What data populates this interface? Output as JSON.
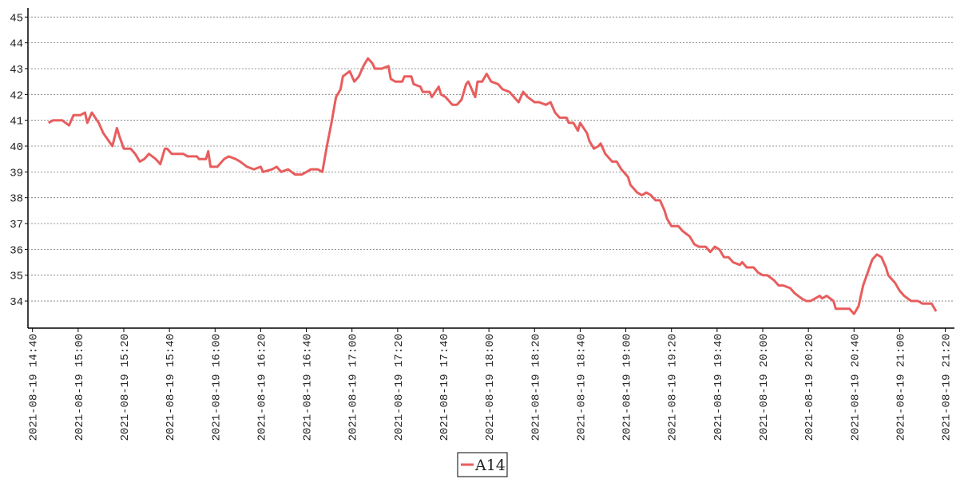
{
  "chart_data": {
    "type": "line",
    "x": [
      "2021-08-19 14:47",
      "2021-08-19 14:49",
      "2021-08-19 14:53",
      "2021-08-19 14:56",
      "2021-08-19 14:58",
      "2021-08-19 15:01",
      "2021-08-19 15:03",
      "2021-08-19 15:04",
      "2021-08-19 15:06",
      "2021-08-19 15:09",
      "2021-08-19 15:11",
      "2021-08-19 15:15",
      "2021-08-19 15:17",
      "2021-08-19 15:18",
      "2021-08-19 15:20",
      "2021-08-19 15:23",
      "2021-08-19 15:25",
      "2021-08-19 15:27",
      "2021-08-19 15:29",
      "2021-08-19 15:31",
      "2021-08-19 15:34",
      "2021-08-19 15:36",
      "2021-08-19 15:38",
      "2021-08-19 15:39",
      "2021-08-19 15:41",
      "2021-08-19 15:46",
      "2021-08-19 15:48",
      "2021-08-19 15:52",
      "2021-08-19 15:53",
      "2021-08-19 15:56",
      "2021-08-19 15:57",
      "2021-08-19 15:58",
      "2021-08-19 16:01",
      "2021-08-19 16:04",
      "2021-08-19 16:06",
      "2021-08-19 16:09",
      "2021-08-19 16:11",
      "2021-08-19 16:14",
      "2021-08-19 16:17",
      "2021-08-19 16:20",
      "2021-08-19 16:21",
      "2021-08-19 16:25",
      "2021-08-19 16:27",
      "2021-08-19 16:29",
      "2021-08-19 16:32",
      "2021-08-19 16:35",
      "2021-08-19 16:38",
      "2021-08-19 16:40",
      "2021-08-19 16:42",
      "2021-08-19 16:45",
      "2021-08-19 16:47",
      "2021-08-19 16:49",
      "2021-08-19 16:51",
      "2021-08-19 16:53",
      "2021-08-19 16:55",
      "2021-08-19 16:56",
      "2021-08-19 16:59",
      "2021-08-19 17:01",
      "2021-08-19 17:03",
      "2021-08-19 17:05",
      "2021-08-19 17:07",
      "2021-08-19 17:09",
      "2021-08-19 17:10",
      "2021-08-19 17:13",
      "2021-08-19 17:16",
      "2021-08-19 17:17",
      "2021-08-19 17:19",
      "2021-08-19 17:22",
      "2021-08-19 17:23",
      "2021-08-19 17:26",
      "2021-08-19 17:27",
      "2021-08-19 17:30",
      "2021-08-19 17:31",
      "2021-08-19 17:34",
      "2021-08-19 17:35",
      "2021-08-19 17:38",
      "2021-08-19 17:39",
      "2021-08-19 17:41",
      "2021-08-19 17:44",
      "2021-08-19 17:46",
      "2021-08-19 17:48",
      "2021-08-19 17:50",
      "2021-08-19 17:51",
      "2021-08-19 17:54",
      "2021-08-19 17:55",
      "2021-08-19 17:57",
      "2021-08-19 17:59",
      "2021-08-19 18:01",
      "2021-08-19 18:04",
      "2021-08-19 18:06",
      "2021-08-19 18:09",
      "2021-08-19 18:11",
      "2021-08-19 18:13",
      "2021-08-19 18:15",
      "2021-08-19 18:17",
      "2021-08-19 18:20",
      "2021-08-19 18:22",
      "2021-08-19 18:25",
      "2021-08-19 18:27",
      "2021-08-19 18:29",
      "2021-08-19 18:31",
      "2021-08-19 18:34",
      "2021-08-19 18:35",
      "2021-08-19 18:37",
      "2021-08-19 18:39",
      "2021-08-19 18:40",
      "2021-08-19 18:43",
      "2021-08-19 18:44",
      "2021-08-19 18:46",
      "2021-08-19 18:48",
      "2021-08-19 18:49",
      "2021-08-19 18:51",
      "2021-08-19 18:54",
      "2021-08-19 18:56",
      "2021-08-19 18:58",
      "2021-08-19 19:01",
      "2021-08-19 19:02",
      "2021-08-19 19:05",
      "2021-08-19 19:07",
      "2021-08-19 19:09",
      "2021-08-19 19:11",
      "2021-08-19 19:13",
      "2021-08-19 19:15",
      "2021-08-19 19:17",
      "2021-08-19 19:18",
      "2021-08-19 19:20",
      "2021-08-19 19:23",
      "2021-08-19 19:25",
      "2021-08-19 19:28",
      "2021-08-19 19:30",
      "2021-08-19 19:32",
      "2021-08-19 19:35",
      "2021-08-19 19:37",
      "2021-08-19 19:39",
      "2021-08-19 19:41",
      "2021-08-19 19:43",
      "2021-08-19 19:45",
      "2021-08-19 19:47",
      "2021-08-19 19:50",
      "2021-08-19 19:51",
      "2021-08-19 19:53",
      "2021-08-19 19:56",
      "2021-08-19 19:58",
      "2021-08-19 20:00",
      "2021-08-19 20:02",
      "2021-08-19 20:05",
      "2021-08-19 20:07",
      "2021-08-19 20:09",
      "2021-08-19 20:12",
      "2021-08-19 20:14",
      "2021-08-19 20:17",
      "2021-08-19 20:19",
      "2021-08-19 20:21",
      "2021-08-19 20:23",
      "2021-08-19 20:25",
      "2021-08-19 20:26",
      "2021-08-19 20:28",
      "2021-08-19 20:31",
      "2021-08-19 20:32",
      "2021-08-19 20:35",
      "2021-08-19 20:38",
      "2021-08-19 20:39",
      "2021-08-19 20:40",
      "2021-08-19 20:42",
      "2021-08-19 20:44",
      "2021-08-19 20:46",
      "2021-08-19 20:48",
      "2021-08-19 20:50",
      "2021-08-19 20:52",
      "2021-08-19 20:54",
      "2021-08-19 20:55",
      "2021-08-19 20:58",
      "2021-08-19 21:00",
      "2021-08-19 21:02",
      "2021-08-19 21:05",
      "2021-08-19 21:08",
      "2021-08-19 21:10",
      "2021-08-19 21:14",
      "2021-08-19 21:16"
    ],
    "series": [
      {
        "name": "A14",
        "color": "#e85d5d",
        "values": [
          40.9,
          41.0,
          41.0,
          40.8,
          41.2,
          41.2,
          41.3,
          40.9,
          41.3,
          40.9,
          40.5,
          40.0,
          40.7,
          40.4,
          39.9,
          39.9,
          39.7,
          39.4,
          39.5,
          39.7,
          39.5,
          39.3,
          39.9,
          39.9,
          39.7,
          39.7,
          39.6,
          39.6,
          39.5,
          39.5,
          39.8,
          39.2,
          39.2,
          39.5,
          39.6,
          39.5,
          39.4,
          39.2,
          39.1,
          39.2,
          39.0,
          39.1,
          39.2,
          39.0,
          39.1,
          38.9,
          38.9,
          39.0,
          39.1,
          39.1,
          39.0,
          40.0,
          40.9,
          41.9,
          42.2,
          42.7,
          42.9,
          42.5,
          42.7,
          43.1,
          43.4,
          43.2,
          43.0,
          43.0,
          43.1,
          42.6,
          42.5,
          42.5,
          42.7,
          42.7,
          42.4,
          42.3,
          42.1,
          42.1,
          41.9,
          42.3,
          42.0,
          41.9,
          41.6,
          41.6,
          41.8,
          42.4,
          42.5,
          41.9,
          42.5,
          42.5,
          42.8,
          42.5,
          42.4,
          42.2,
          42.1,
          41.9,
          41.7,
          42.1,
          41.9,
          41.7,
          41.7,
          41.6,
          41.7,
          41.3,
          41.1,
          41.1,
          40.9,
          40.9,
          40.6,
          40.9,
          40.5,
          40.2,
          39.9,
          40.0,
          40.1,
          39.7,
          39.4,
          39.4,
          39.1,
          38.8,
          38.5,
          38.2,
          38.1,
          38.2,
          38.1,
          37.9,
          37.9,
          37.5,
          37.2,
          36.9,
          36.9,
          36.7,
          36.5,
          36.2,
          36.1,
          36.1,
          35.9,
          36.1,
          36.0,
          35.7,
          35.7,
          35.5,
          35.4,
          35.5,
          35.3,
          35.3,
          35.1,
          35.0,
          35.0,
          34.8,
          34.6,
          34.6,
          34.5,
          34.3,
          34.1,
          34.0,
          34.0,
          34.1,
          34.2,
          34.1,
          34.2,
          34.0,
          33.7,
          33.7,
          33.7,
          33.6,
          33.5,
          33.8,
          34.6,
          35.1,
          35.6,
          35.8,
          35.7,
          35.3,
          35.0,
          34.7,
          34.4,
          34.2,
          34.0,
          34.0,
          33.9,
          33.9,
          33.6
        ]
      }
    ],
    "xlim": [
      "2021-08-19 14:38",
      "2021-08-19 21:24"
    ],
    "xticks": [
      "2021-08-19 14:40",
      "2021-08-19 15:00",
      "2021-08-19 15:20",
      "2021-08-19 15:40",
      "2021-08-19 16:00",
      "2021-08-19 16:20",
      "2021-08-19 16:40",
      "2021-08-19 17:00",
      "2021-08-19 17:20",
      "2021-08-19 17:40",
      "2021-08-19 18:00",
      "2021-08-19 18:20",
      "2021-08-19 18:40",
      "2021-08-19 19:00",
      "2021-08-19 19:20",
      "2021-08-19 19:40",
      "2021-08-19 20:00",
      "2021-08-19 20:20",
      "2021-08-19 20:40",
      "2021-08-19 21:00",
      "2021-08-19 21:20"
    ],
    "ylim": [
      32.95,
      45.35
    ],
    "yticks": [
      34,
      35,
      36,
      37,
      38,
      39,
      40,
      41,
      42,
      43,
      44,
      45
    ],
    "grid": true,
    "legend": "bottom"
  }
}
